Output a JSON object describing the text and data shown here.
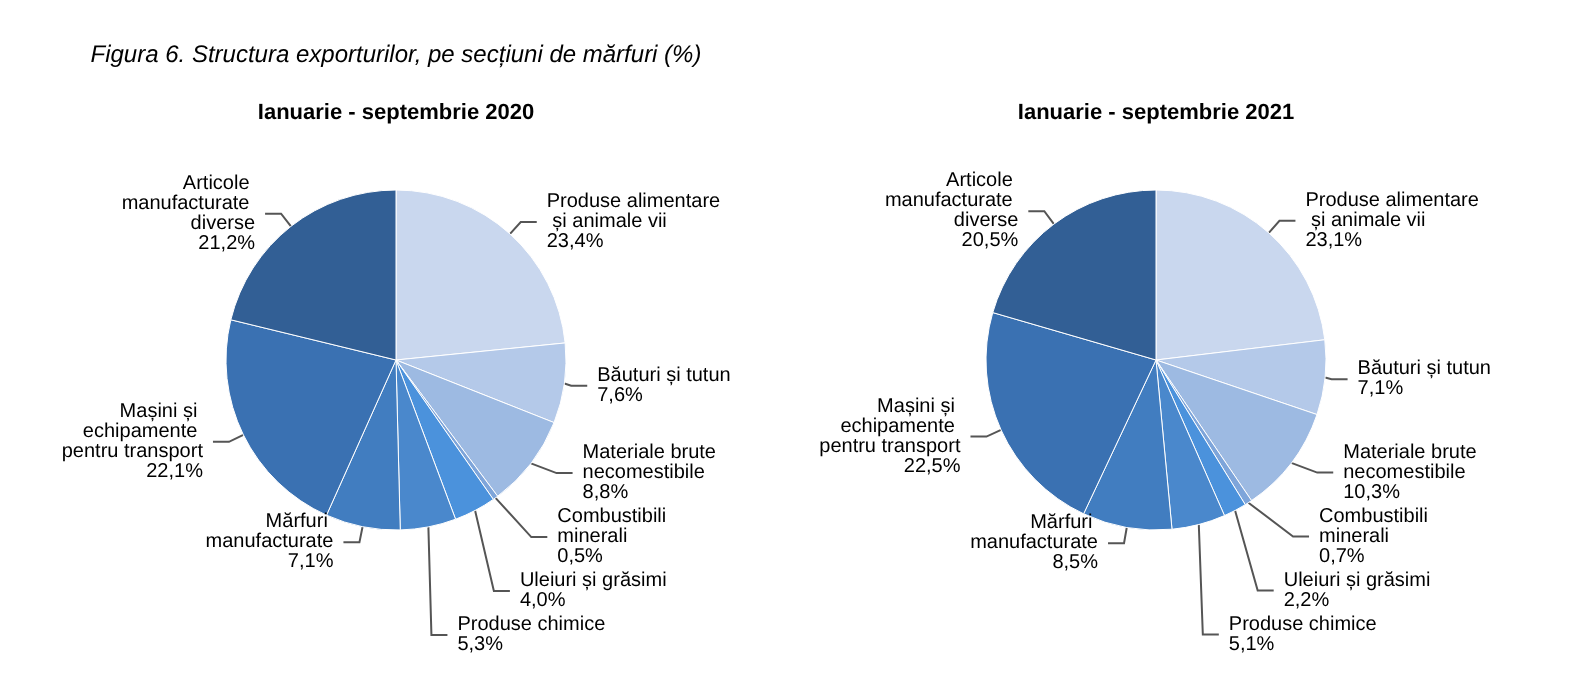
{
  "chart_data": [
    {
      "type": "pie",
      "title": "Figura 6. Structura exporturilor, pe secțiuni de mărfuri (%)",
      "subtitle": "Ianuarie - septembrie 2020",
      "categories": [
        "Produse alimentare și animale vii",
        "Băuturi și tutun",
        "Materiale brute necomestibile",
        "Combustibili minerali",
        "Uleiuri și grăsimi",
        "Produse chimice",
        "Mărfuri manufacturate",
        "Mașini și echipamente pentru transport",
        "Articole manufacturate diverse"
      ],
      "values": [
        23.4,
        7.6,
        8.8,
        0.5,
        4.0,
        5.3,
        7.1,
        22.1,
        21.2
      ],
      "value_labels": [
        "23,4%",
        "7,6%",
        "8,8%",
        "0,5%",
        "4,0%",
        "5,3%",
        "7,1%",
        "22,1%",
        "21,2%"
      ],
      "colors": [
        "#c9d7ee",
        "#b4c9e9",
        "#9dbae2",
        "#7ea5da",
        "#4b92dc",
        "#4a88cc",
        "#417dc0",
        "#3a71b2",
        "#325f95"
      ],
      "legend": false
    },
    {
      "type": "pie",
      "subtitle": "Ianuarie - septembrie 2021",
      "categories": [
        "Produse alimentare și animale vii",
        "Băuturi și tutun",
        "Materiale brute necomestibile",
        "Combustibili minerali",
        "Uleiuri și grăsimi",
        "Produse chimice",
        "Mărfuri manufacturate",
        "Mașini și echipamente pentru transport",
        "Articole manufacturate diverse"
      ],
      "values": [
        23.1,
        7.1,
        10.3,
        0.7,
        2.2,
        5.1,
        8.5,
        22.5,
        20.5
      ],
      "value_labels": [
        "23,1%",
        "7,1%",
        "10,3%",
        "0,7%",
        "2,2%",
        "5,1%",
        "8,5%",
        "22,5%",
        "20,5%"
      ],
      "colors": [
        "#c9d7ee",
        "#b4c9e9",
        "#9dbae2",
        "#7ea5da",
        "#4b92dc",
        "#4a88cc",
        "#417dc0",
        "#3a71b2",
        "#325f95"
      ],
      "legend": false
    }
  ]
}
